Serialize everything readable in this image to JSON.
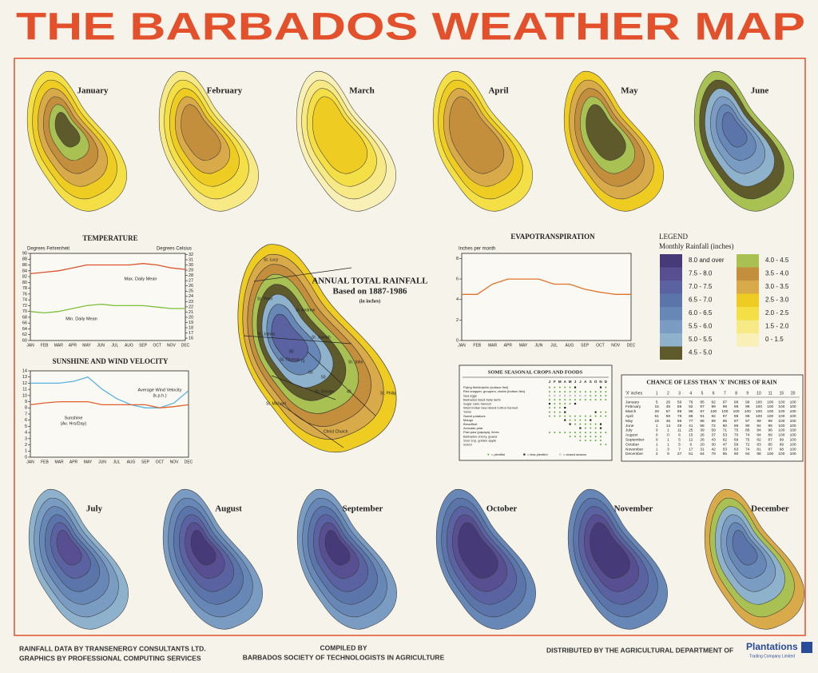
{
  "header": {
    "title": "THE BARBADOS WEATHER MAP"
  },
  "months": [
    "January",
    "February",
    "March",
    "April",
    "May",
    "June",
    "July",
    "August",
    "September",
    "October",
    "November",
    "December"
  ],
  "legend": {
    "title": "LEGEND",
    "subtitle": "Monthly Rainfall (inches)",
    "items": [
      {
        "label": "8.0 and over",
        "color": "#463a78"
      },
      {
        "label": "7.5 - 8.0",
        "color": "#574f92"
      },
      {
        "label": "7.0 - 7.5",
        "color": "#5a62a2"
      },
      {
        "label": "6.5 - 7.0",
        "color": "#5b74aa"
      },
      {
        "label": "6.0 - 6.5",
        "color": "#6787b6"
      },
      {
        "label": "5.5 - 6.0",
        "color": "#7b9cc2"
      },
      {
        "label": "5.0 - 5.5",
        "color": "#8fb2cc"
      },
      {
        "label": "4.5 - 5.0",
        "color": "#5e5a2c"
      },
      {
        "label": "4.0 - 4.5",
        "color": "#a9c152"
      },
      {
        "label": "3.5 - 4.0",
        "color": "#c38f3c"
      },
      {
        "label": "3.0 - 3.5",
        "color": "#d9aa4a"
      },
      {
        "label": "2.5 - 3.0",
        "color": "#efcc22"
      },
      {
        "label": "2.0 - 2.5",
        "color": "#f4df46"
      },
      {
        "label": "1.5 - 2.0",
        "color": "#f7e985"
      },
      {
        "label": "0 - 1.5",
        "color": "#f8f0b6"
      }
    ]
  },
  "annual_map": {
    "title": "ANNUAL TOTAL RAINFALL",
    "subtitle": "Based on 1887-1986",
    "unit": "(in inches)",
    "parishes": [
      "St. Lucy",
      "St. Peter",
      "St. Andrew",
      "St. James",
      "St. Joseph",
      "St. Thomas",
      "St. John",
      "St. George",
      "St. Philip",
      "St. Michael",
      "Christ Church"
    ],
    "contour_labels": [
      "80",
      "70",
      "60",
      "50",
      "40"
    ]
  },
  "chart_data": [
    {
      "type": "line",
      "title": "TEMPERATURE",
      "ylabel": "Degrees Fehrenheit",
      "y2label": "Degrees Celsius",
      "categories": [
        "JAN",
        "FEB",
        "MAR",
        "APR",
        "MAY",
        "JUN",
        "JUL",
        "AUG",
        "SEP",
        "OCT",
        "NOV",
        "DEC"
      ],
      "ylim": [
        60,
        90
      ],
      "yticks": [
        60,
        62,
        64,
        66,
        68,
        70,
        72,
        74,
        76,
        78,
        80,
        82,
        84,
        86,
        88,
        90
      ],
      "y2lim": [
        15.56,
        32.22
      ],
      "y2ticks": [
        16,
        17,
        18,
        19,
        20,
        21,
        22,
        23,
        24,
        25,
        26,
        27,
        28,
        29,
        30,
        31,
        32
      ],
      "series": [
        {
          "name": "Max. Daily Mean",
          "color": "#d9532c",
          "values": [
            83,
            83.5,
            84,
            85,
            86,
            86,
            86,
            86,
            86.5,
            86,
            85,
            84.5
          ]
        },
        {
          "name": "Min. Daily Mean",
          "color": "#7cbf3a",
          "values": [
            70,
            69.5,
            70,
            71,
            72,
            72.5,
            72,
            72,
            72,
            71.5,
            71,
            71
          ]
        }
      ]
    },
    {
      "type": "line",
      "title": "SUNSHINE AND WIND VELOCITY",
      "categories": [
        "JAN",
        "FEB",
        "MAR",
        "APR",
        "MAY",
        "JUN",
        "JUL",
        "AUG",
        "SEP",
        "OCT",
        "NOV",
        "DEC"
      ],
      "ylim": [
        0,
        14
      ],
      "yticks": [
        0,
        1,
        2,
        3,
        4,
        5,
        6,
        7,
        8,
        9,
        10,
        11,
        12,
        13,
        14
      ],
      "series": [
        {
          "name": "Average Wind Velocity",
          "unit": "(k.p.h.)",
          "color": "#5ab4e0",
          "values": [
            12,
            12,
            12,
            12.3,
            13,
            11,
            9.5,
            8.5,
            8,
            8,
            8.8,
            10.8
          ]
        },
        {
          "name": "Sunshine",
          "unit": "(Av. Hrs/Day)",
          "color": "#e0602a",
          "values": [
            8.5,
            8.8,
            9,
            9,
            9,
            8.5,
            8.5,
            8.5,
            8.5,
            8,
            8.2,
            8.5
          ]
        }
      ]
    },
    {
      "type": "line",
      "title": "EVAPOTRANSPIRATION",
      "ylabel": "Inches per month",
      "categories": [
        "JAN",
        "FEB",
        "MAR",
        "APR",
        "MAY",
        "JUN",
        "JUL",
        "AUG",
        "SEP",
        "OCT",
        "NOV",
        "DEC"
      ],
      "ylim": [
        0,
        8.5
      ],
      "yticks": [
        0,
        2,
        4,
        6,
        8
      ],
      "color": "#e0742a",
      "values": [
        4.5,
        4.5,
        5.5,
        6,
        6,
        6,
        5.5,
        5.5,
        5,
        4.7,
        4.5,
        4.5
      ]
    }
  ],
  "crops": {
    "title": "SOME SEASONAL CROPS AND FOODS",
    "months": [
      "J",
      "F",
      "M",
      "A",
      "M",
      "J",
      "J",
      "A",
      "S",
      "O",
      "N",
      "D"
    ],
    "rows": [
      {
        "name": "Flying fish/dolphin (surface fish)",
        "months": [
          "●",
          "●",
          "●",
          "●",
          "●",
          "■",
          null,
          null,
          null,
          null,
          "■",
          "●"
        ]
      },
      {
        "name": "Red snapper, groupers, chubb (bottom fish)",
        "months": [
          "●",
          "●",
          "●",
          "●",
          "●",
          "●",
          "●",
          "●",
          "●",
          "●",
          "●",
          "●"
        ]
      },
      {
        "name": "Sea eggs",
        "months": [
          "○",
          "○",
          "○",
          "○",
          "○",
          "○",
          "○",
          "○",
          "●",
          "●",
          "●",
          "●"
        ]
      },
      {
        "name": "Barbados black belly lamb",
        "months": [
          "●",
          "●",
          "●",
          "●",
          "●",
          "●",
          "●",
          "●",
          "●",
          "●",
          "●",
          "●"
        ]
      },
      {
        "name": "Sugar cane harvest",
        "months": [
          "■",
          "●",
          "●",
          "●",
          "●",
          "■",
          null,
          null,
          null,
          null,
          null,
          null
        ]
      },
      {
        "name": "West Indian Sea Island Cotton harvest",
        "months": [
          "●",
          "●",
          "●",
          "■",
          null,
          null,
          null,
          null,
          null,
          null,
          null,
          null
        ]
      },
      {
        "name": "Yams",
        "months": [
          "●",
          "●",
          "●",
          "■",
          null,
          null,
          null,
          null,
          null,
          "■",
          "●",
          "●"
        ]
      },
      {
        "name": "Sweet potatoes",
        "months": [
          "●",
          "●",
          "●",
          "●",
          "●",
          "●",
          "●",
          "●",
          "●",
          "●",
          "●",
          "●"
        ]
      },
      {
        "name": "Mango",
        "months": [
          null,
          null,
          null,
          "■",
          "●",
          "●",
          "●",
          "●",
          "■",
          null,
          null,
          null
        ]
      },
      {
        "name": "Breadfruit",
        "months": [
          null,
          null,
          null,
          null,
          "■",
          "●",
          "●",
          "●",
          "●",
          "●",
          "■",
          null
        ]
      },
      {
        "name": "Avocado pear",
        "months": [
          null,
          null,
          null,
          null,
          null,
          null,
          "■",
          "●",
          "●",
          "●",
          "■",
          null
        ]
      },
      {
        "name": "Paw paw (papaya), limes",
        "months": [
          "●",
          "●",
          "●",
          "●",
          "●",
          "●",
          "●",
          "●",
          "●",
          "●",
          "●",
          "●"
        ]
      },
      {
        "name": "Barbados cherry, guava",
        "months": [
          null,
          null,
          null,
          null,
          "●",
          "●",
          "●",
          "●",
          "●",
          "●",
          "●",
          null
        ]
      },
      {
        "name": "Sour sop, golden apple",
        "months": [
          null,
          null,
          null,
          null,
          null,
          null,
          "●",
          "●",
          "●",
          "●",
          "●",
          null
        ]
      },
      {
        "name": "Sorrel",
        "months": [
          null,
          null,
          null,
          null,
          null,
          null,
          null,
          null,
          null,
          null,
          "●",
          "●"
        ]
      }
    ],
    "legend": [
      {
        "symbol": "●",
        "label": "= plentiful"
      },
      {
        "symbol": "■",
        "label": "= less plentiful"
      },
      {
        "symbol": "○",
        "label": "= closed season"
      }
    ]
  },
  "rain_chance": {
    "title": "CHANCE OF LESS THAN 'X' INCHES OF RAIN",
    "header": [
      "'X' inches",
      "1",
      "2",
      "3",
      "4",
      "5",
      "6",
      "7",
      "8",
      "9",
      "10",
      "11",
      "15",
      "20"
    ],
    "rows": [
      [
        "January",
        5,
        26,
        56,
        76,
        85,
        92,
        97,
        98,
        99,
        100,
        100,
        100,
        100
      ],
      [
        "February",
        15,
        45,
        86,
        92,
        97,
        99,
        99,
        99,
        99,
        100,
        100,
        100,
        100
      ],
      [
        "March",
        29,
        67,
        89,
        96,
        97,
        100,
        100,
        100,
        100,
        100,
        100,
        100,
        100
      ],
      [
        "April",
        51,
        59,
        79,
        89,
        91,
        94,
        97,
        99,
        99,
        100,
        100,
        100,
        100
      ],
      [
        "May",
        19,
        45,
        66,
        77,
        86,
        89,
        95,
        97,
        97,
        99,
        99,
        100,
        100
      ],
      [
        "June",
        1,
        14,
        29,
        41,
        56,
        72,
        80,
        86,
        90,
        94,
        99,
        100,
        100
      ],
      [
        "July",
        0,
        1,
        11,
        25,
        39,
        59,
        71,
        75,
        85,
        94,
        96,
        100,
        100
      ],
      [
        "August",
        0,
        0,
        6,
        15,
        26,
        37,
        53,
        70,
        74,
        84,
        89,
        100,
        100
      ],
      [
        "September",
        0,
        1,
        5,
        12,
        26,
        43,
        62,
        69,
        75,
        82,
        87,
        99,
        100
      ],
      [
        "October",
        1,
        1,
        5,
        6,
        20,
        30,
        47,
        59,
        72,
        83,
        85,
        99,
        100
      ],
      [
        "November",
        1,
        3,
        7,
        17,
        31,
        42,
        53,
        63,
        74,
        81,
        87,
        98,
        100
      ],
      [
        "December",
        2,
        9,
        27,
        51,
        64,
        79,
        85,
        90,
        94,
        98,
        100,
        100,
        100
      ]
    ]
  },
  "footer": {
    "credits": [
      "RAINFALL DATA BY TRANSENERGY CONSULTANTS LTD.",
      "GRAPHICS BY PROFESSIONAL COMPUTING SERVICES"
    ],
    "compiled": [
      "COMPILED BY",
      "BARBADOS SOCIETY OF TECHNOLOGISTS IN AGRICULTURE"
    ],
    "distributed": "DISTRIBUTED BY THE AGRICULTURAL DEPARTMENT OF",
    "logo": "Plantations",
    "logo_sub": "Trading Company Limited"
  }
}
